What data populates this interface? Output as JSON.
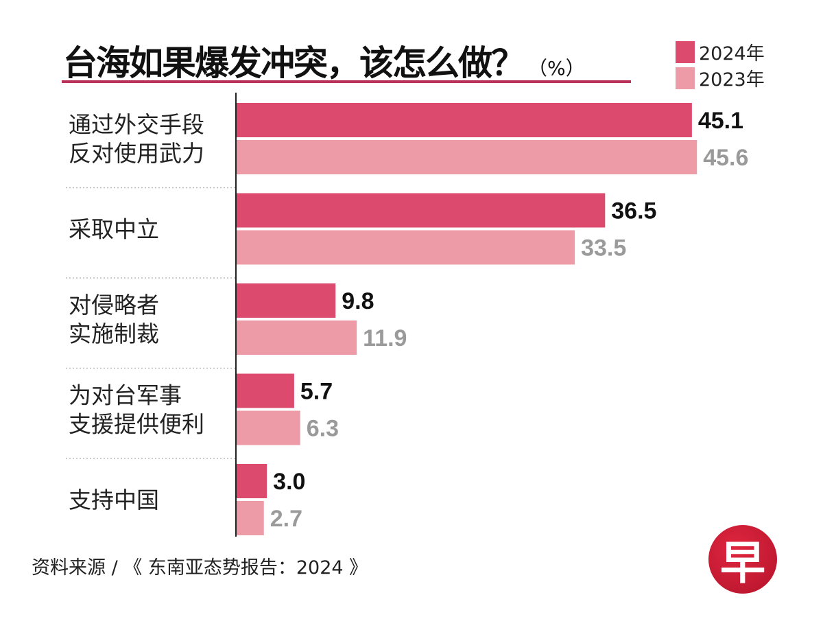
{
  "chart_data": {
    "type": "bar",
    "orientation": "horizontal",
    "title": "台海如果爆发冲突，该怎么做？",
    "unit": "（%）",
    "categories": [
      [
        "通过外交手段",
        "反对使用武力"
      ],
      [
        "采取中立"
      ],
      [
        "对侵略者",
        "实施制裁"
      ],
      [
        "为对台军事",
        "支援提供便利"
      ],
      [
        "支持中国"
      ]
    ],
    "series": [
      {
        "name": "2024年",
        "color": "#dc4a6e",
        "values": [
          45.1,
          36.5,
          9.8,
          5.7,
          3.0
        ],
        "labels": [
          "45.1",
          "36.5",
          "9.8",
          "5.7",
          "3.0"
        ]
      },
      {
        "name": "2023年",
        "color": "#ec9ba7",
        "values": [
          45.6,
          33.5,
          11.9,
          6.3,
          2.7
        ],
        "labels": [
          "45.6",
          "33.5",
          "11.9",
          "6.3",
          "2.7"
        ]
      }
    ],
    "legend": "top-right",
    "grid": false
  },
  "source": "资料来源 / 《 东南亚态势报告：2024 》",
  "logo_text": "早"
}
